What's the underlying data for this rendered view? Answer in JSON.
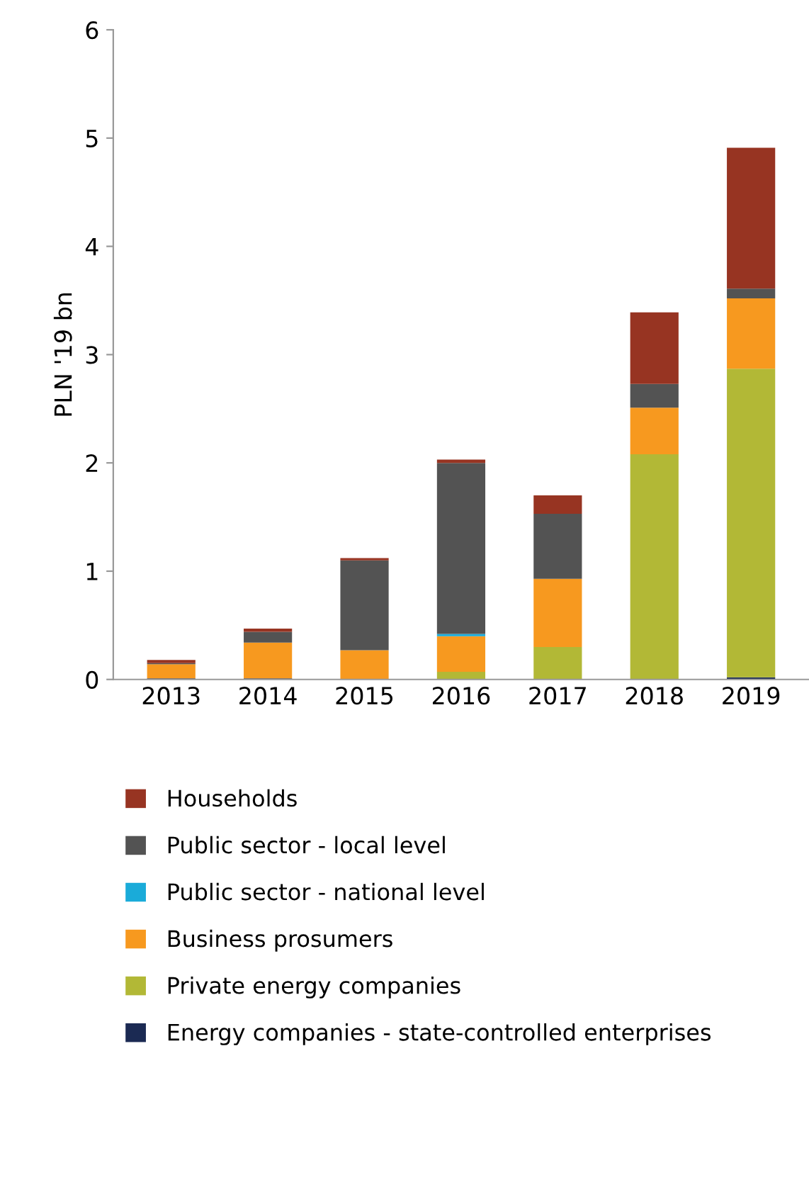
{
  "chart_data": {
    "type": "bar",
    "stacked": true,
    "ylabel": "PLN '19 bn",
    "categories": [
      "2013",
      "2014",
      "2015",
      "2016",
      "2017",
      "2018",
      "2019"
    ],
    "ylim": [
      0,
      6
    ],
    "yticks": [
      0,
      1,
      2,
      3,
      4,
      5,
      6
    ],
    "grid": false,
    "legend": "bottom",
    "series": [
      {
        "name": "Energy companies - state-controlled enterprises",
        "color": "#1b2a53",
        "values": [
          0.01,
          0.01,
          0,
          0,
          0,
          0,
          0.02
        ]
      },
      {
        "name": "Private energy companies",
        "color": "#b2b836",
        "values": [
          0,
          0,
          0,
          0.07,
          0.3,
          2.08,
          2.85
        ]
      },
      {
        "name": "Business prosumers",
        "color": "#f7991f",
        "values": [
          0.13,
          0.33,
          0.27,
          0.33,
          0.63,
          0.43,
          0.65
        ]
      },
      {
        "name": "Public sector - national level",
        "color": "#1aabd9",
        "values": [
          0,
          0,
          0,
          0.02,
          0,
          0,
          0
        ]
      },
      {
        "name": "Public sector - local level",
        "color": "#535353",
        "values": [
          0.01,
          0.1,
          0.83,
          1.58,
          0.6,
          0.22,
          0.09
        ]
      },
      {
        "name": "Households",
        "color": "#973422",
        "values": [
          0.03,
          0.03,
          0.02,
          0.03,
          0.17,
          0.66,
          1.3
        ]
      }
    ]
  }
}
